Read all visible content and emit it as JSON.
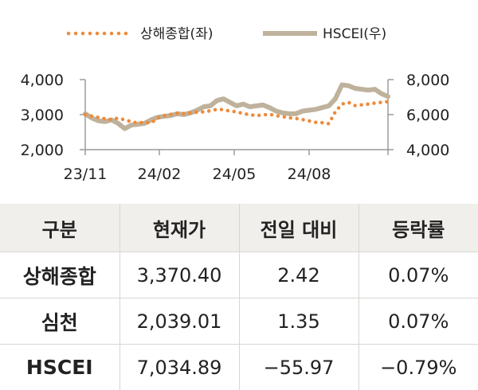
{
  "chart_data": {
    "type": "line",
    "legend": [
      "상해종합(좌)",
      "HSCEI(우)"
    ],
    "legend_position": "top",
    "x_tick_labels": [
      "23/11",
      "24/02",
      "24/05",
      "24/08"
    ],
    "y_left_ticks": [
      "4,000",
      "3,000",
      "2,000"
    ],
    "y_right_ticks": [
      "8,000",
      "6,000",
      "4,000"
    ],
    "y_left_range": [
      2000,
      4000
    ],
    "y_right_range": [
      4000,
      8000
    ],
    "colors": {
      "shanghai": "#ee8a3a",
      "hscei": "#bfb29c"
    },
    "series": [
      {
        "name": "상해종합(좌)",
        "axis": "left",
        "style": "dotted",
        "values": [
          3000,
          2960,
          2920,
          2880,
          2860,
          2900,
          2850,
          2800,
          2760,
          2780,
          2760,
          2900,
          2970,
          3010,
          3040,
          3030,
          3050,
          3070,
          3080,
          3110,
          3150,
          3140,
          3100,
          3080,
          3030,
          3000,
          2970,
          2990,
          3010,
          2970,
          2940,
          2910,
          2890,
          2860,
          2820,
          2780,
          2770,
          2740,
          3080,
          3300,
          3350,
          3260,
          3280,
          3300,
          3330,
          3350,
          3370
        ]
      },
      {
        "name": "HSCEI(우)",
        "axis": "right",
        "style": "solid",
        "values": [
          6050,
          5800,
          5650,
          5600,
          5700,
          5500,
          5200,
          5400,
          5450,
          5500,
          5700,
          5850,
          5900,
          5950,
          6050,
          6000,
          6100,
          6250,
          6450,
          6500,
          6800,
          6900,
          6700,
          6500,
          6600,
          6450,
          6500,
          6550,
          6400,
          6200,
          6100,
          6050,
          6050,
          6200,
          6250,
          6300,
          6400,
          6500,
          6900,
          7700,
          7650,
          7500,
          7450,
          7400,
          7450,
          7200,
          7035
        ]
      }
    ]
  },
  "table": {
    "headers": [
      "구분",
      "현재가",
      "전일 대비",
      "등락률"
    ],
    "rows": [
      [
        "상해종합",
        "3,370.40",
        "2.42",
        "0.07%"
      ],
      [
        "심천",
        "2,039.01",
        "1.35",
        "0.07%"
      ],
      [
        "HSCEI",
        "7,034.89",
        "−55.97",
        "−0.79%"
      ]
    ]
  }
}
